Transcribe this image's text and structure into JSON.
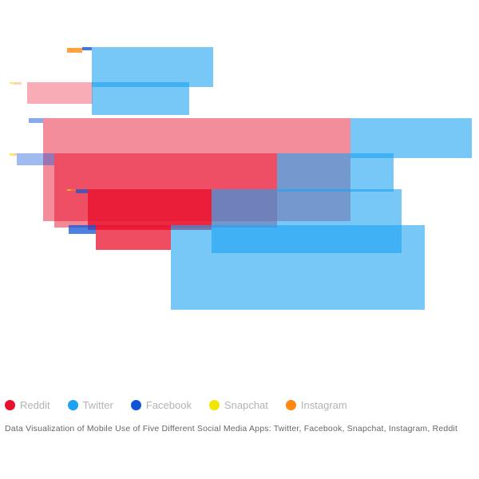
{
  "chart_data": {
    "type": "bar",
    "title": "",
    "caption": "Data Visualization of Mobile Use of Five Different Social Media Apps: Twitter, Facebook, Snapchat, Instagram, Reddit",
    "legend_position": "bottom-left",
    "grid": false,
    "series": [
      {
        "name": "Reddit",
        "color": "#e8112d",
        "key": "reddit"
      },
      {
        "name": "Twitter",
        "color": "#1da1f2",
        "key": "twitter"
      },
      {
        "name": "Facebook",
        "color": "#1155d6",
        "key": "facebook"
      },
      {
        "name": "Snapchat",
        "color": "#f2e600",
        "key": "snapchat"
      },
      {
        "name": "Instagram",
        "color": "#ff8811",
        "key": "instagram"
      }
    ],
    "bars": [
      {
        "series": "instagram",
        "start": 84,
        "length": 19,
        "row": 60,
        "thickness": 6,
        "opacity": 0.8
      },
      {
        "series": "facebook",
        "start": 103,
        "length": 12,
        "row": 59,
        "thickness": 4,
        "opacity": 0.8
      },
      {
        "series": "twitter",
        "start": 115,
        "length": 152,
        "row": 59,
        "thickness": 50,
        "opacity": 0.6
      },
      {
        "series": "snapchat",
        "start": 12,
        "length": 5,
        "row": 103,
        "thickness": 2,
        "opacity": 0.6
      },
      {
        "series": "instagram",
        "start": 17,
        "length": 10,
        "row": 103,
        "thickness": 3,
        "opacity": 0.35
      },
      {
        "series": "reddit",
        "start": 34,
        "length": 82,
        "row": 103,
        "thickness": 27,
        "opacity": 0.35
      },
      {
        "series": "twitter",
        "start": 115,
        "length": 122,
        "row": 103,
        "thickness": 41,
        "opacity": 0.6
      },
      {
        "series": "facebook",
        "start": 36,
        "length": 18,
        "row": 148,
        "thickness": 6,
        "opacity": 0.5
      },
      {
        "series": "reddit",
        "start": 54,
        "length": 385,
        "row": 148,
        "thickness": 129,
        "opacity": 0.48
      },
      {
        "series": "twitter",
        "start": 439,
        "length": 152,
        "row": 148,
        "thickness": 50,
        "opacity": 0.6
      },
      {
        "series": "snapchat",
        "start": 12,
        "length": 5,
        "row": 192,
        "thickness": 3,
        "opacity": 0.6
      },
      {
        "series": "instagram",
        "start": 17,
        "length": 4,
        "row": 192,
        "thickness": 3,
        "opacity": 0.4
      },
      {
        "series": "facebook",
        "start": 21,
        "length": 47,
        "row": 192,
        "thickness": 15,
        "opacity": 0.4
      },
      {
        "series": "reddit",
        "start": 68,
        "length": 279,
        "row": 192,
        "thickness": 93,
        "opacity": 0.5
      },
      {
        "series": "twitter",
        "start": 347,
        "length": 146,
        "row": 192,
        "thickness": 48,
        "opacity": 0.6
      },
      {
        "series": "snapchat",
        "start": 84,
        "length": 5,
        "row": 237,
        "thickness": 2,
        "opacity": 0.6
      },
      {
        "series": "instagram",
        "start": 89,
        "length": 6,
        "row": 237,
        "thickness": 2,
        "opacity": 0.5
      },
      {
        "series": "facebook",
        "start": 95,
        "length": 15,
        "row": 237,
        "thickness": 5,
        "opacity": 0.7
      },
      {
        "series": "reddit",
        "start": 110,
        "length": 155,
        "row": 237,
        "thickness": 51,
        "opacity": 0.8
      },
      {
        "series": "twitter",
        "start": 265,
        "length": 238,
        "row": 237,
        "thickness": 80,
        "opacity": 0.6
      },
      {
        "series": "facebook",
        "start": 86,
        "length": 34,
        "row": 282,
        "thickness": 11,
        "opacity": 0.75
      },
      {
        "series": "reddit",
        "start": 120,
        "length": 94,
        "row": 282,
        "thickness": 31,
        "opacity": 0.75
      },
      {
        "series": "twitter",
        "start": 214,
        "length": 318,
        "row": 282,
        "thickness": 106,
        "opacity": 0.6
      }
    ]
  }
}
